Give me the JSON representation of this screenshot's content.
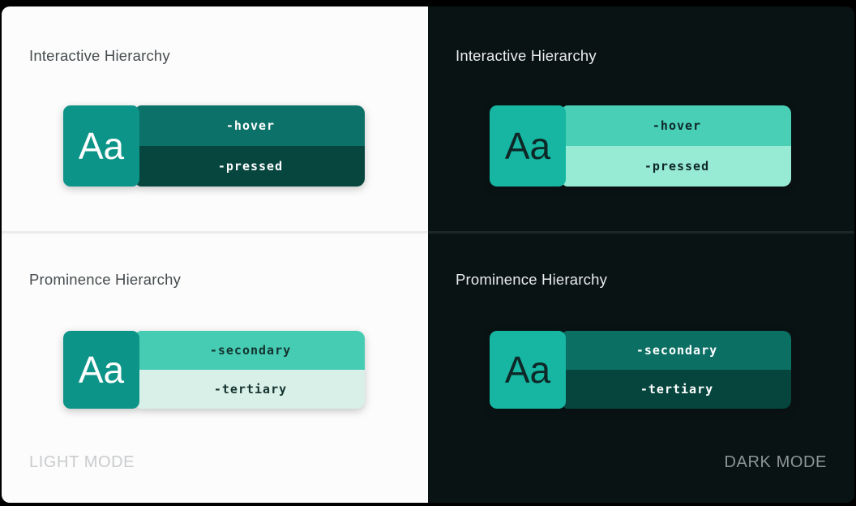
{
  "page": {
    "background": "#000000"
  },
  "light": {
    "mode_label": "LIGHT MODE",
    "panel_bg": "#fcfcfc",
    "divider_color": "#ececec",
    "title_color": "#474c4f",
    "mode_label_color": "#c9cbcd",
    "sections": [
      {
        "title": "Interactive Hierarchy",
        "tile": {
          "label": "Aa",
          "bg": "#0d9488",
          "text": "#ffffff"
        },
        "bars": [
          {
            "label": "-hover",
            "bg": "#0c7168",
            "text": "#ffffff"
          },
          {
            "label": "-pressed",
            "bg": "#07453f",
            "text": "#ffffff"
          }
        ]
      },
      {
        "title": "Prominence Hierarchy",
        "tile": {
          "label": "Aa",
          "bg": "#0d9488",
          "text": "#ffffff"
        },
        "bars": [
          {
            "label": "-secondary",
            "bg": "#45ccb3",
            "text": "#14322e"
          },
          {
            "label": "-tertiary",
            "bg": "#d9f0e8",
            "text": "#14322e"
          }
        ]
      }
    ]
  },
  "dark": {
    "mode_label": "DARK MODE",
    "panel_bg": "#0a1314",
    "divider_color": "#1d2728",
    "title_color": "#e9ecec",
    "mode_label_color": "#8d9697",
    "sections": [
      {
        "title": "Interactive Hierarchy",
        "tile": {
          "label": "Aa",
          "bg": "#16b6a3",
          "text": "#0e2727"
        },
        "bars": [
          {
            "label": "-hover",
            "bg": "#48cfb6",
            "text": "#0e2727"
          },
          {
            "label": "-pressed",
            "bg": "#97ead3",
            "text": "#0e2727"
          }
        ]
      },
      {
        "title": "Prominence Hierarchy",
        "tile": {
          "label": "Aa",
          "bg": "#16b6a3",
          "text": "#0e2727"
        },
        "bars": [
          {
            "label": "-secondary",
            "bg": "#0c6f64",
            "text": "#ffffff"
          },
          {
            "label": "-tertiary",
            "bg": "#06453e",
            "text": "#ffffff"
          }
        ]
      }
    ]
  }
}
